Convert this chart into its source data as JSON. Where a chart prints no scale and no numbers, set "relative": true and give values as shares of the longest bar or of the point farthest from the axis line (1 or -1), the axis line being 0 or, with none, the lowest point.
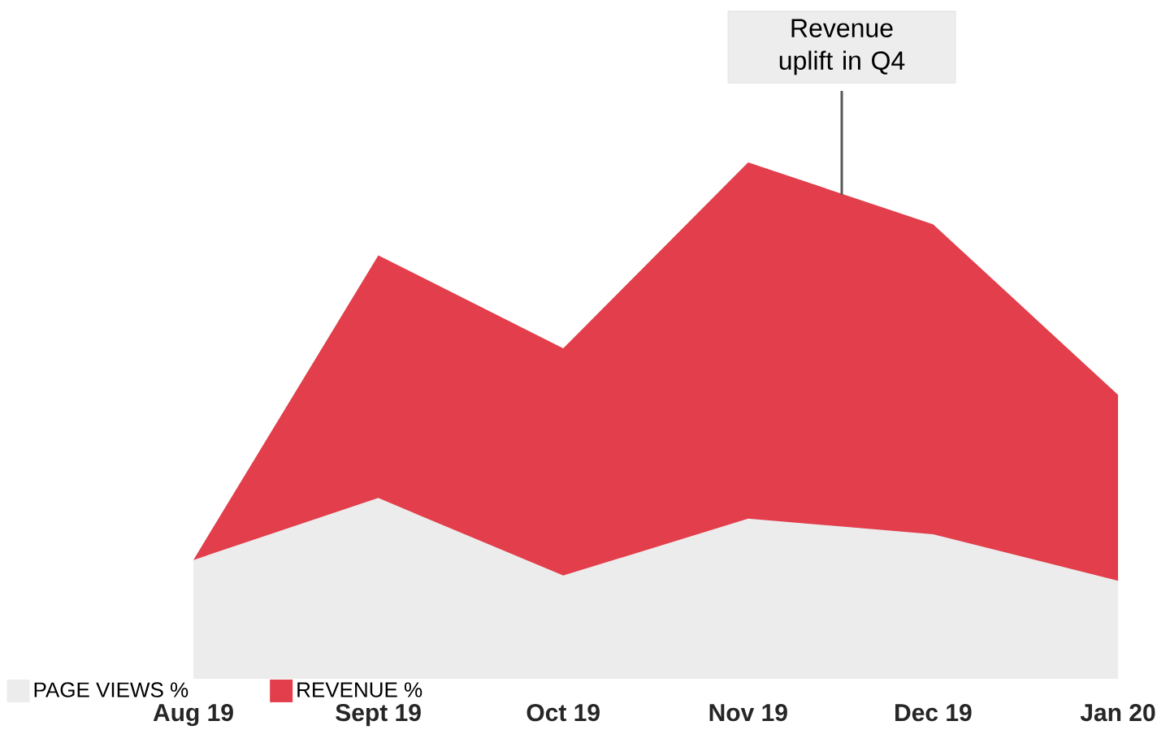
{
  "chart_data": {
    "type": "area",
    "relative": true,
    "categories": [
      "Aug 19",
      "Sept 19",
      "Oct 19",
      "Nov 19",
      "Dec 19",
      "Jan 20"
    ],
    "series": [
      {
        "name": "REVENUE %",
        "color": "#e23e4b",
        "values": [
          0.23,
          0.82,
          0.64,
          1.0,
          0.88,
          0.55
        ]
      },
      {
        "name": "PAGE VIEWS %",
        "color": "#ececec",
        "values": [
          0.23,
          0.35,
          0.2,
          0.31,
          0.28,
          0.19
        ]
      }
    ],
    "annotations": [
      "Revenue uplift in Q4"
    ],
    "legend": "left"
  }
}
